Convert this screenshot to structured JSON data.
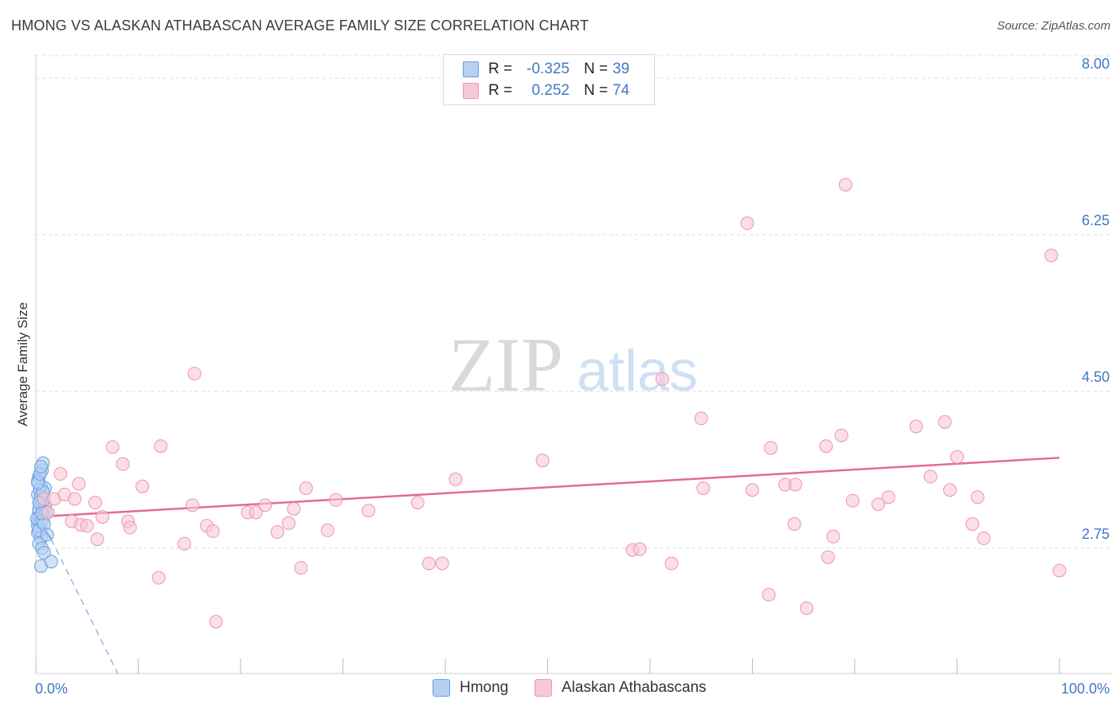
{
  "title": "HMONG VS ALASKAN ATHABASCAN AVERAGE FAMILY SIZE CORRELATION CHART",
  "source": "Source: ZipAtlas.com",
  "watermark": {
    "zip": "ZIP",
    "atlas": "atlas"
  },
  "legend": {
    "rows": [
      {
        "r_label": "R =",
        "r_value": "-0.325",
        "n_label": "N =",
        "n_value": "39",
        "color": "#a9c8f0",
        "border": "#6a9fe0"
      },
      {
        "r_label": "R =",
        "r_value": "0.252",
        "n_label": "N =",
        "n_value": "74",
        "color": "#f9c5d5",
        "border": "#ee93ae"
      }
    ]
  },
  "bottom_legend": [
    {
      "label": "Hmong",
      "color": "#a9c8f0",
      "border": "#6a9fe0"
    },
    {
      "label": "Alaskan Athabascans",
      "color": "#f9c5d5",
      "border": "#ee93ae"
    }
  ],
  "chart_data": {
    "type": "scatter",
    "title": "HMONG VS ALASKAN ATHABASCAN AVERAGE FAMILY SIZE CORRELATION CHART",
    "xlabel": "",
    "ylabel": "Average Family Size",
    "xlim": [
      0,
      100
    ],
    "ylim": [
      1.35,
      8.25
    ],
    "x_tick_labels": [
      "0.0%",
      "100.0%"
    ],
    "y_ticks": [
      2.75,
      4.5,
      6.25,
      8.0
    ],
    "y_tick_labels": [
      "2.75",
      "4.50",
      "6.25",
      "8.00"
    ],
    "series": [
      {
        "name": "Hmong",
        "color": "#6a9fe0",
        "fill": "#b6d0f2",
        "points": [
          [
            0.2,
            3.05
          ],
          [
            0.3,
            3.15
          ],
          [
            0.4,
            3.25
          ],
          [
            0.2,
            3.35
          ],
          [
            0.5,
            3.45
          ],
          [
            0.3,
            3.55
          ],
          [
            0.6,
            3.62
          ],
          [
            0.7,
            3.7
          ],
          [
            0.4,
            2.98
          ],
          [
            0.2,
            2.92
          ],
          [
            0.5,
            2.86
          ],
          [
            0.3,
            2.8
          ],
          [
            0.6,
            2.75
          ],
          [
            0.8,
            2.7
          ],
          [
            0.5,
            2.55
          ],
          [
            1.5,
            2.6
          ],
          [
            0.9,
            3.42
          ],
          [
            0.7,
            3.2
          ],
          [
            0.4,
            3.1
          ],
          [
            0.2,
            3.0
          ],
          [
            0.3,
            3.18
          ],
          [
            0.6,
            3.28
          ],
          [
            0.8,
            3.12
          ],
          [
            0.2,
            3.5
          ],
          [
            0.4,
            3.4
          ],
          [
            0.9,
            3.22
          ],
          [
            0.1,
            3.08
          ],
          [
            0.5,
            3.33
          ],
          [
            1.0,
            3.15
          ],
          [
            0.3,
            2.95
          ],
          [
            0.6,
            3.05
          ],
          [
            0.7,
            3.38
          ],
          [
            0.2,
            3.48
          ],
          [
            0.4,
            3.58
          ],
          [
            0.5,
            3.66
          ],
          [
            0.8,
            3.02
          ],
          [
            1.1,
            2.9
          ],
          [
            0.3,
            3.26
          ],
          [
            0.6,
            3.14
          ]
        ]
      },
      {
        "name": "Alaskan Athabascans",
        "color": "#ee93ae",
        "fill": "#f9c8d7",
        "points": [
          [
            0.8,
            3.3
          ],
          [
            1.2,
            3.15
          ],
          [
            1.8,
            3.3
          ],
          [
            2.4,
            3.58
          ],
          [
            2.8,
            3.35
          ],
          [
            3.5,
            3.05
          ],
          [
            3.8,
            3.3
          ],
          [
            4.2,
            3.47
          ],
          [
            4.4,
            3.01
          ],
          [
            5.0,
            3.0
          ],
          [
            5.8,
            3.26
          ],
          [
            6.0,
            2.85
          ],
          [
            6.5,
            3.1
          ],
          [
            7.5,
            3.88
          ],
          [
            8.5,
            3.69
          ],
          [
            9.0,
            3.05
          ],
          [
            9.2,
            2.98
          ],
          [
            10.4,
            3.44
          ],
          [
            12.0,
            2.42
          ],
          [
            12.2,
            3.89
          ],
          [
            14.5,
            2.8
          ],
          [
            15.3,
            3.23
          ],
          [
            15.5,
            4.7
          ],
          [
            16.7,
            3.0
          ],
          [
            17.3,
            2.94
          ],
          [
            17.6,
            1.93
          ],
          [
            20.7,
            3.15
          ],
          [
            21.5,
            3.15
          ],
          [
            22.4,
            3.23
          ],
          [
            23.6,
            2.93
          ],
          [
            24.7,
            3.03
          ],
          [
            25.2,
            3.19
          ],
          [
            25.9,
            2.53
          ],
          [
            26.4,
            3.42
          ],
          [
            28.5,
            2.95
          ],
          [
            29.3,
            3.29
          ],
          [
            32.5,
            3.17
          ],
          [
            37.3,
            3.26
          ],
          [
            38.4,
            2.58
          ],
          [
            39.7,
            2.58
          ],
          [
            41.0,
            3.52
          ],
          [
            49.5,
            3.73
          ],
          [
            58.3,
            2.73
          ],
          [
            61.2,
            4.64
          ],
          [
            62.1,
            2.58
          ],
          [
            65.0,
            4.2
          ],
          [
            65.2,
            3.42
          ],
          [
            69.5,
            6.38
          ],
          [
            70.0,
            3.4
          ],
          [
            71.6,
            2.23
          ],
          [
            71.8,
            3.87
          ],
          [
            73.2,
            3.46
          ],
          [
            74.1,
            3.02
          ],
          [
            74.2,
            3.46
          ],
          [
            75.3,
            2.08
          ],
          [
            77.2,
            3.89
          ],
          [
            77.4,
            2.65
          ],
          [
            77.9,
            2.88
          ],
          [
            78.7,
            4.01
          ],
          [
            79.1,
            6.81
          ],
          [
            79.8,
            3.28
          ],
          [
            82.3,
            3.24
          ],
          [
            83.3,
            3.32
          ],
          [
            86.0,
            4.11
          ],
          [
            87.4,
            3.55
          ],
          [
            88.8,
            4.16
          ],
          [
            89.3,
            3.4
          ],
          [
            90.0,
            3.77
          ],
          [
            91.5,
            3.02
          ],
          [
            92.0,
            3.32
          ],
          [
            92.6,
            2.86
          ],
          [
            99.2,
            6.02
          ],
          [
            100.0,
            2.5
          ],
          [
            59.0,
            2.74
          ]
        ]
      }
    ],
    "trendlines": [
      {
        "series": "Hmong",
        "x": [
          0.0,
          1.5
        ],
        "y": [
          3.1,
          2.85
        ],
        "extended_x": [
          1.5,
          8.0
        ],
        "extended_y": [
          2.85,
          1.35
        ],
        "style": "solid then dashed"
      },
      {
        "series": "Alaskan Athabascans",
        "x": [
          0.0,
          100.0
        ],
        "y": [
          3.1,
          3.76
        ],
        "style": "solid"
      }
    ],
    "grid": true
  }
}
